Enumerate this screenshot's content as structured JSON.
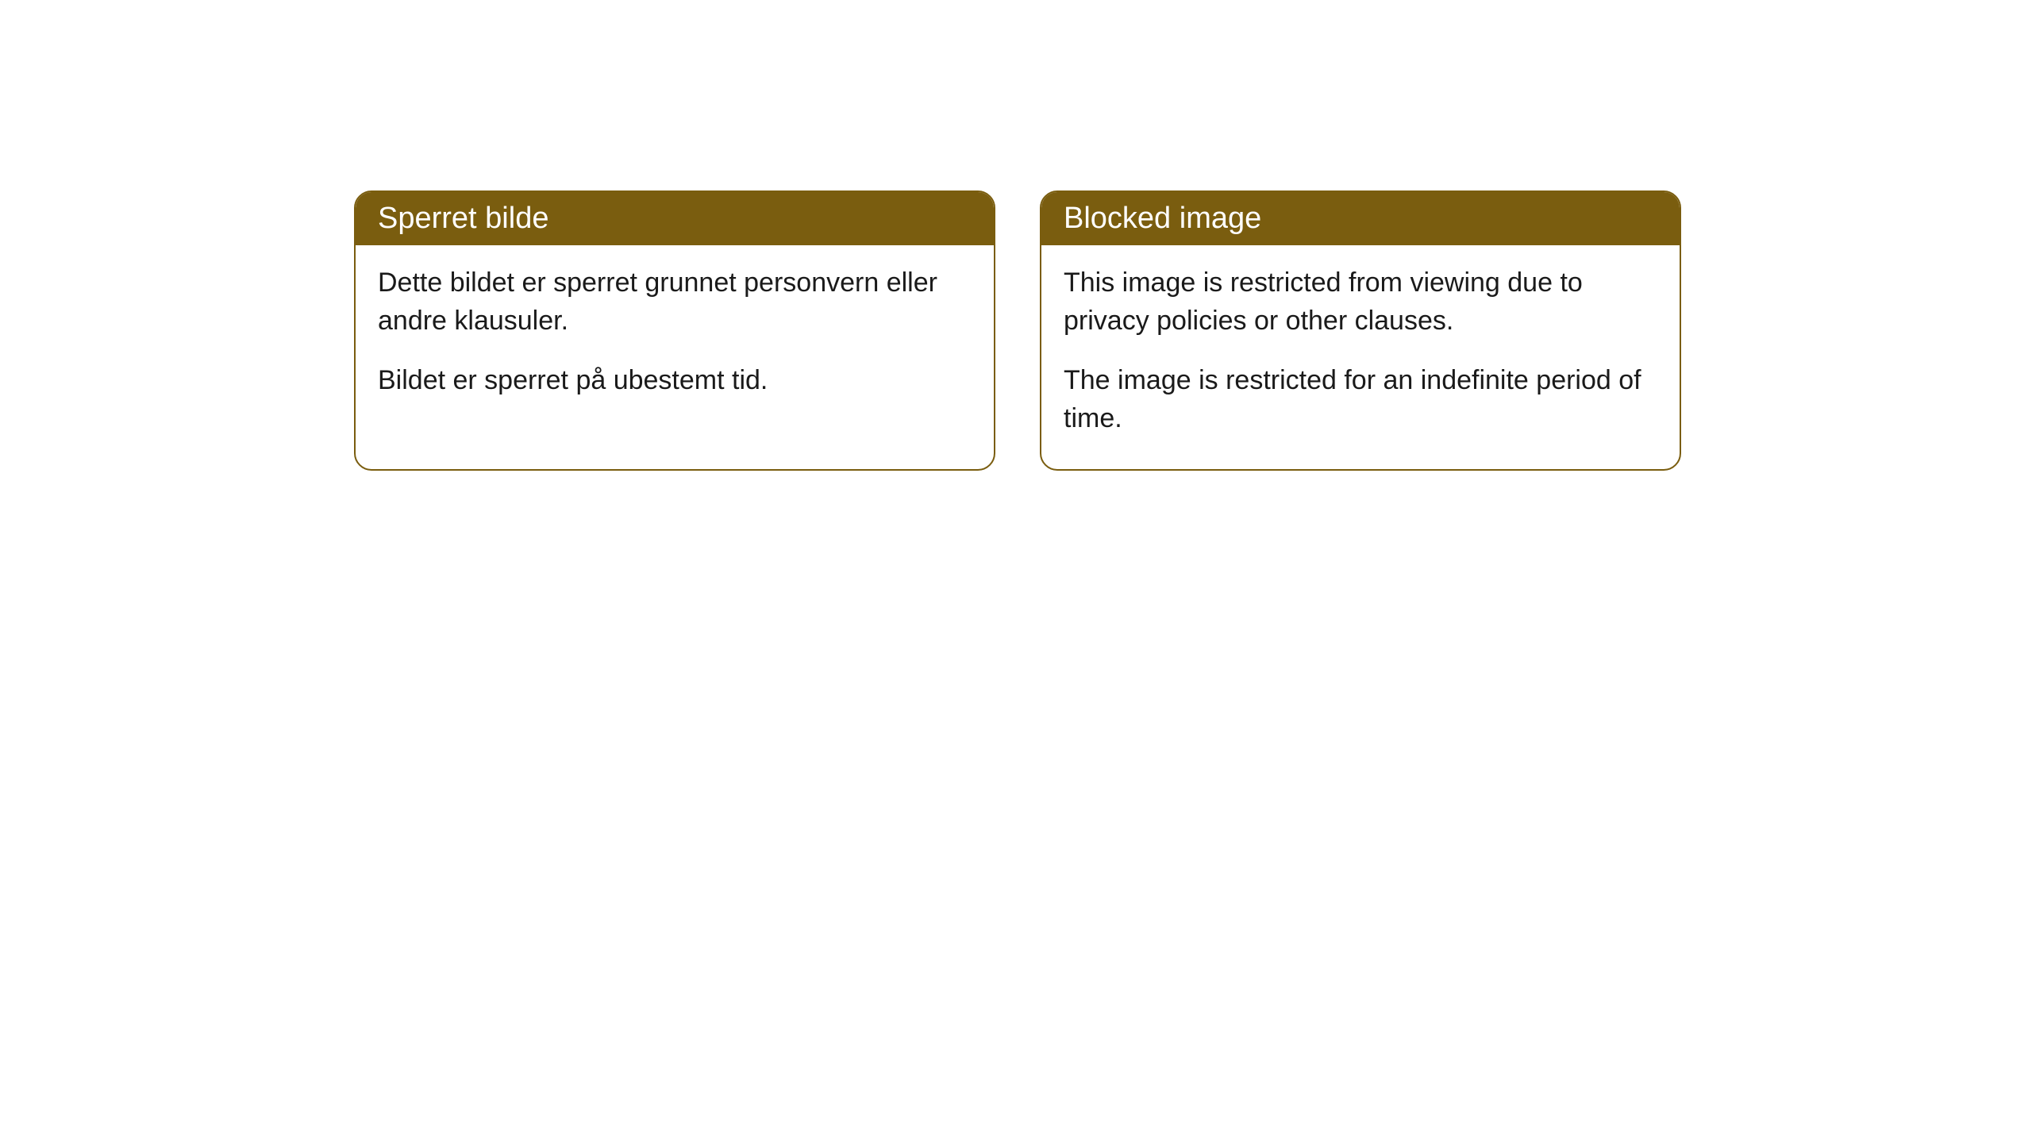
{
  "cards": [
    {
      "title": "Sperret bilde",
      "paragraph1": "Dette bildet er sperret grunnet personvern eller andre klausuler.",
      "paragraph2": "Bildet er sperret på ubestemt tid."
    },
    {
      "title": "Blocked image",
      "paragraph1": "This image is restricted from viewing due to privacy policies or other clauses.",
      "paragraph2": "The image is restricted for an indefinite period of time."
    }
  ],
  "style": {
    "header_bg_color": "#7a5d0f",
    "header_text_color": "#ffffff",
    "border_color": "#7a5d0f",
    "body_text_color": "#1a1a1a",
    "body_bg_color": "#ffffff",
    "border_radius": 22,
    "title_fontsize": 38,
    "body_fontsize": 34
  }
}
